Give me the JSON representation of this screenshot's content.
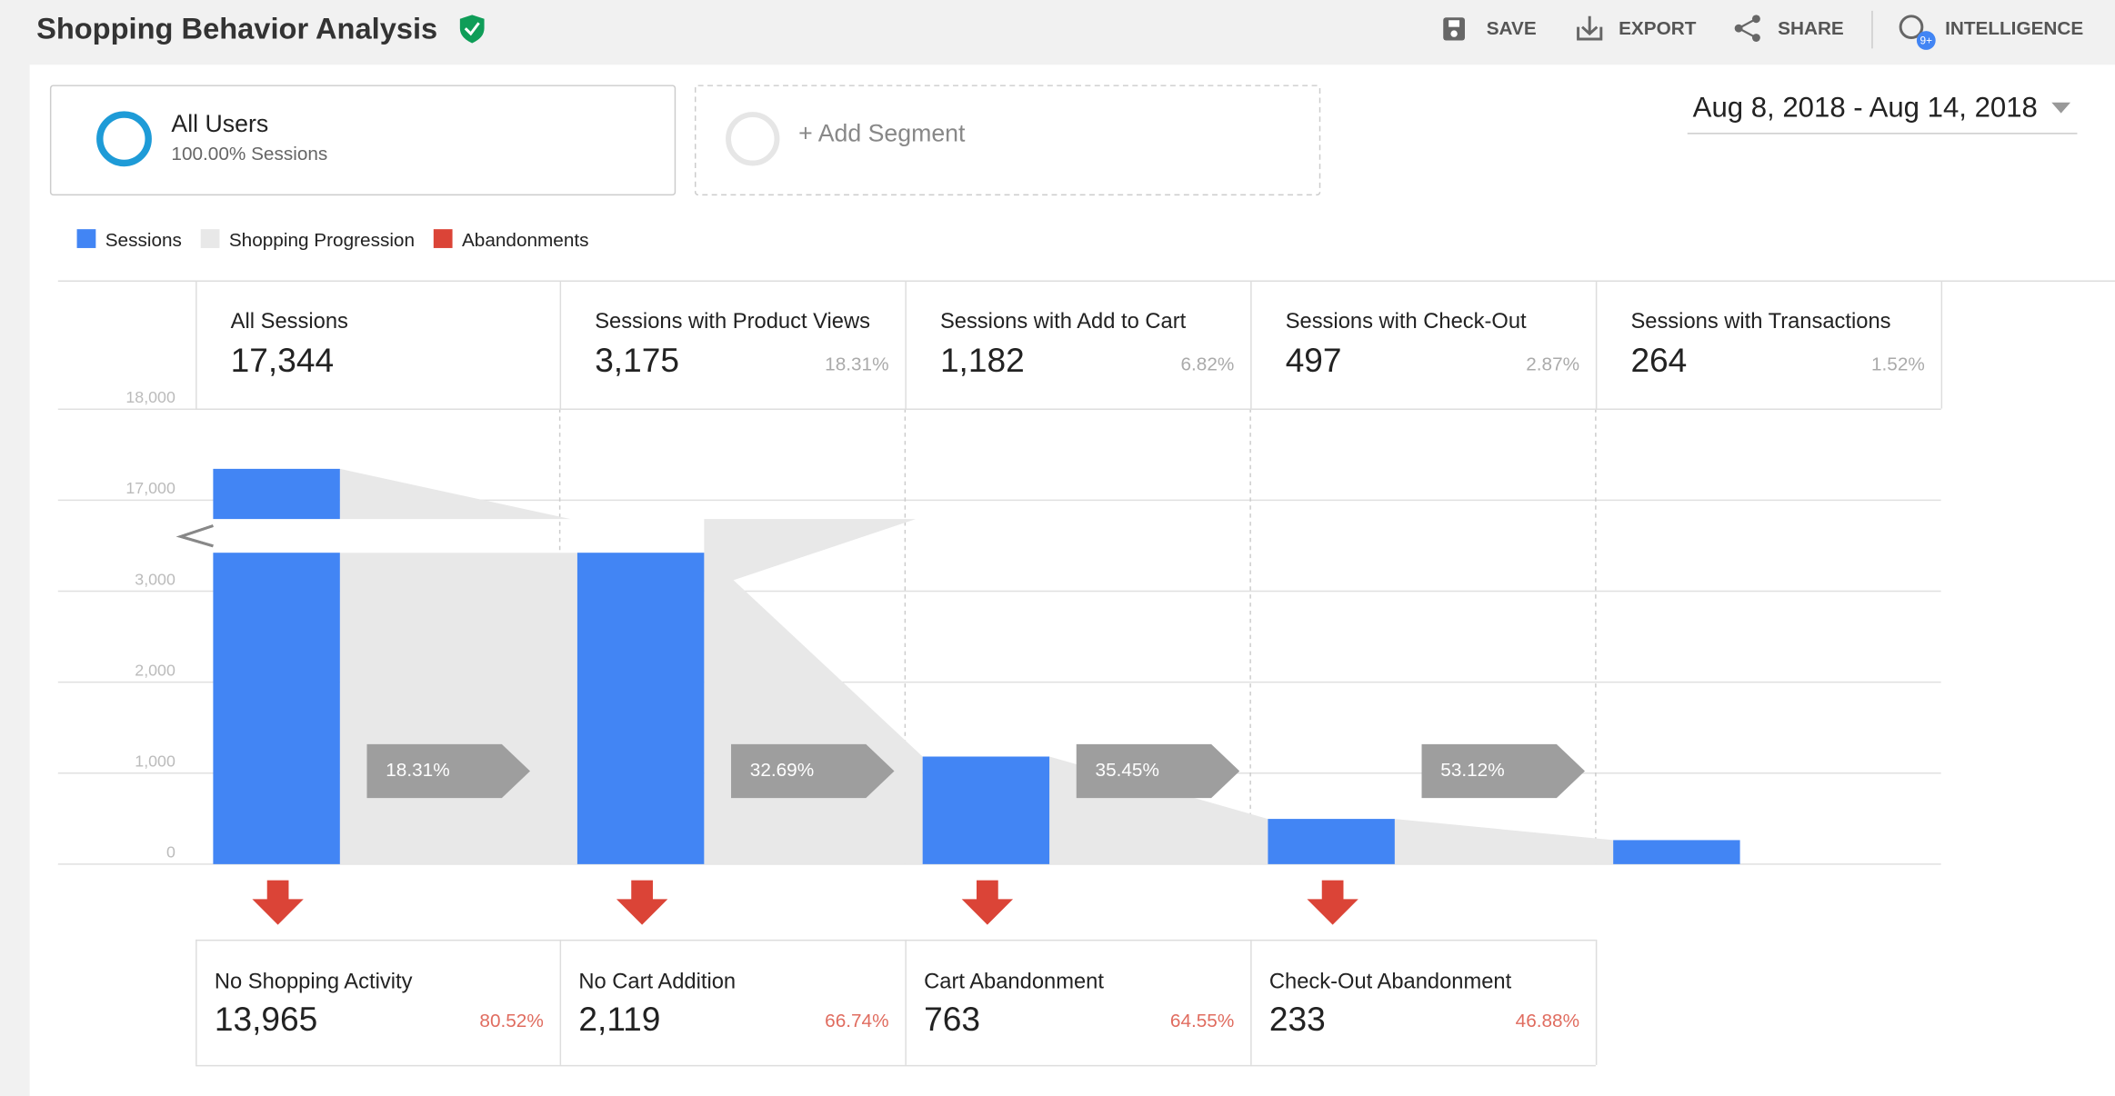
{
  "header": {
    "title": "Shopping Behavior Analysis",
    "actions": [
      "SAVE",
      "EXPORT",
      "SHARE",
      "INTELLIGENCE"
    ],
    "badge": "9+"
  },
  "segments": [
    {
      "name": "All Users",
      "detail": "100.00% Sessions"
    },
    {
      "name": "+ Add Segment"
    }
  ],
  "date_range": "Aug 8, 2018 - Aug 14, 2018",
  "chart_data": {
    "type": "funnel",
    "legend": [
      {
        "name": "Sessions",
        "color": "#4285f4"
      },
      {
        "name": "Shopping Progression",
        "color": "#e8e8e8"
      },
      {
        "name": "Abandonments",
        "color": "#db4437"
      }
    ],
    "categories": [
      "All Sessions",
      "Sessions with Product Views",
      "Sessions with Add to Cart",
      "Sessions with Check-Out",
      "Sessions with Transactions"
    ],
    "values": [
      17344,
      3175,
      1182,
      497,
      264
    ],
    "value_labels": [
      "17,344",
      "3,175",
      "1,182",
      "497",
      "264"
    ],
    "share_labels": [
      null,
      "18.31%",
      "6.82%",
      "2.87%",
      "1.52%"
    ],
    "progression_labels": [
      "18.31%",
      "32.69%",
      "35.45%",
      "53.12%"
    ],
    "abandonments": {
      "categories": [
        "No Shopping Activity",
        "No Cart Addition",
        "Cart Abandonment",
        "Check-Out Abandonment"
      ],
      "values": [
        13965,
        2119,
        763,
        233
      ],
      "value_labels": [
        "13,965",
        "2,119",
        "763",
        "233"
      ],
      "share_labels": [
        "80.52%",
        "66.74%",
        "64.55%",
        "46.88%"
      ]
    },
    "ylim": [
      0,
      18000
    ],
    "yticks": [
      0,
      {
        "value": 1000,
        "label": "1,000"
      },
      {
        "value": 2000,
        "label": "2,000"
      },
      {
        "value": 3000,
        "label": "3,000"
      },
      {
        "value": 17000,
        "label": "17,000"
      },
      {
        "value": 18000,
        "label": "18,000"
      }
    ],
    "axis_break": true,
    "grid": true
  }
}
